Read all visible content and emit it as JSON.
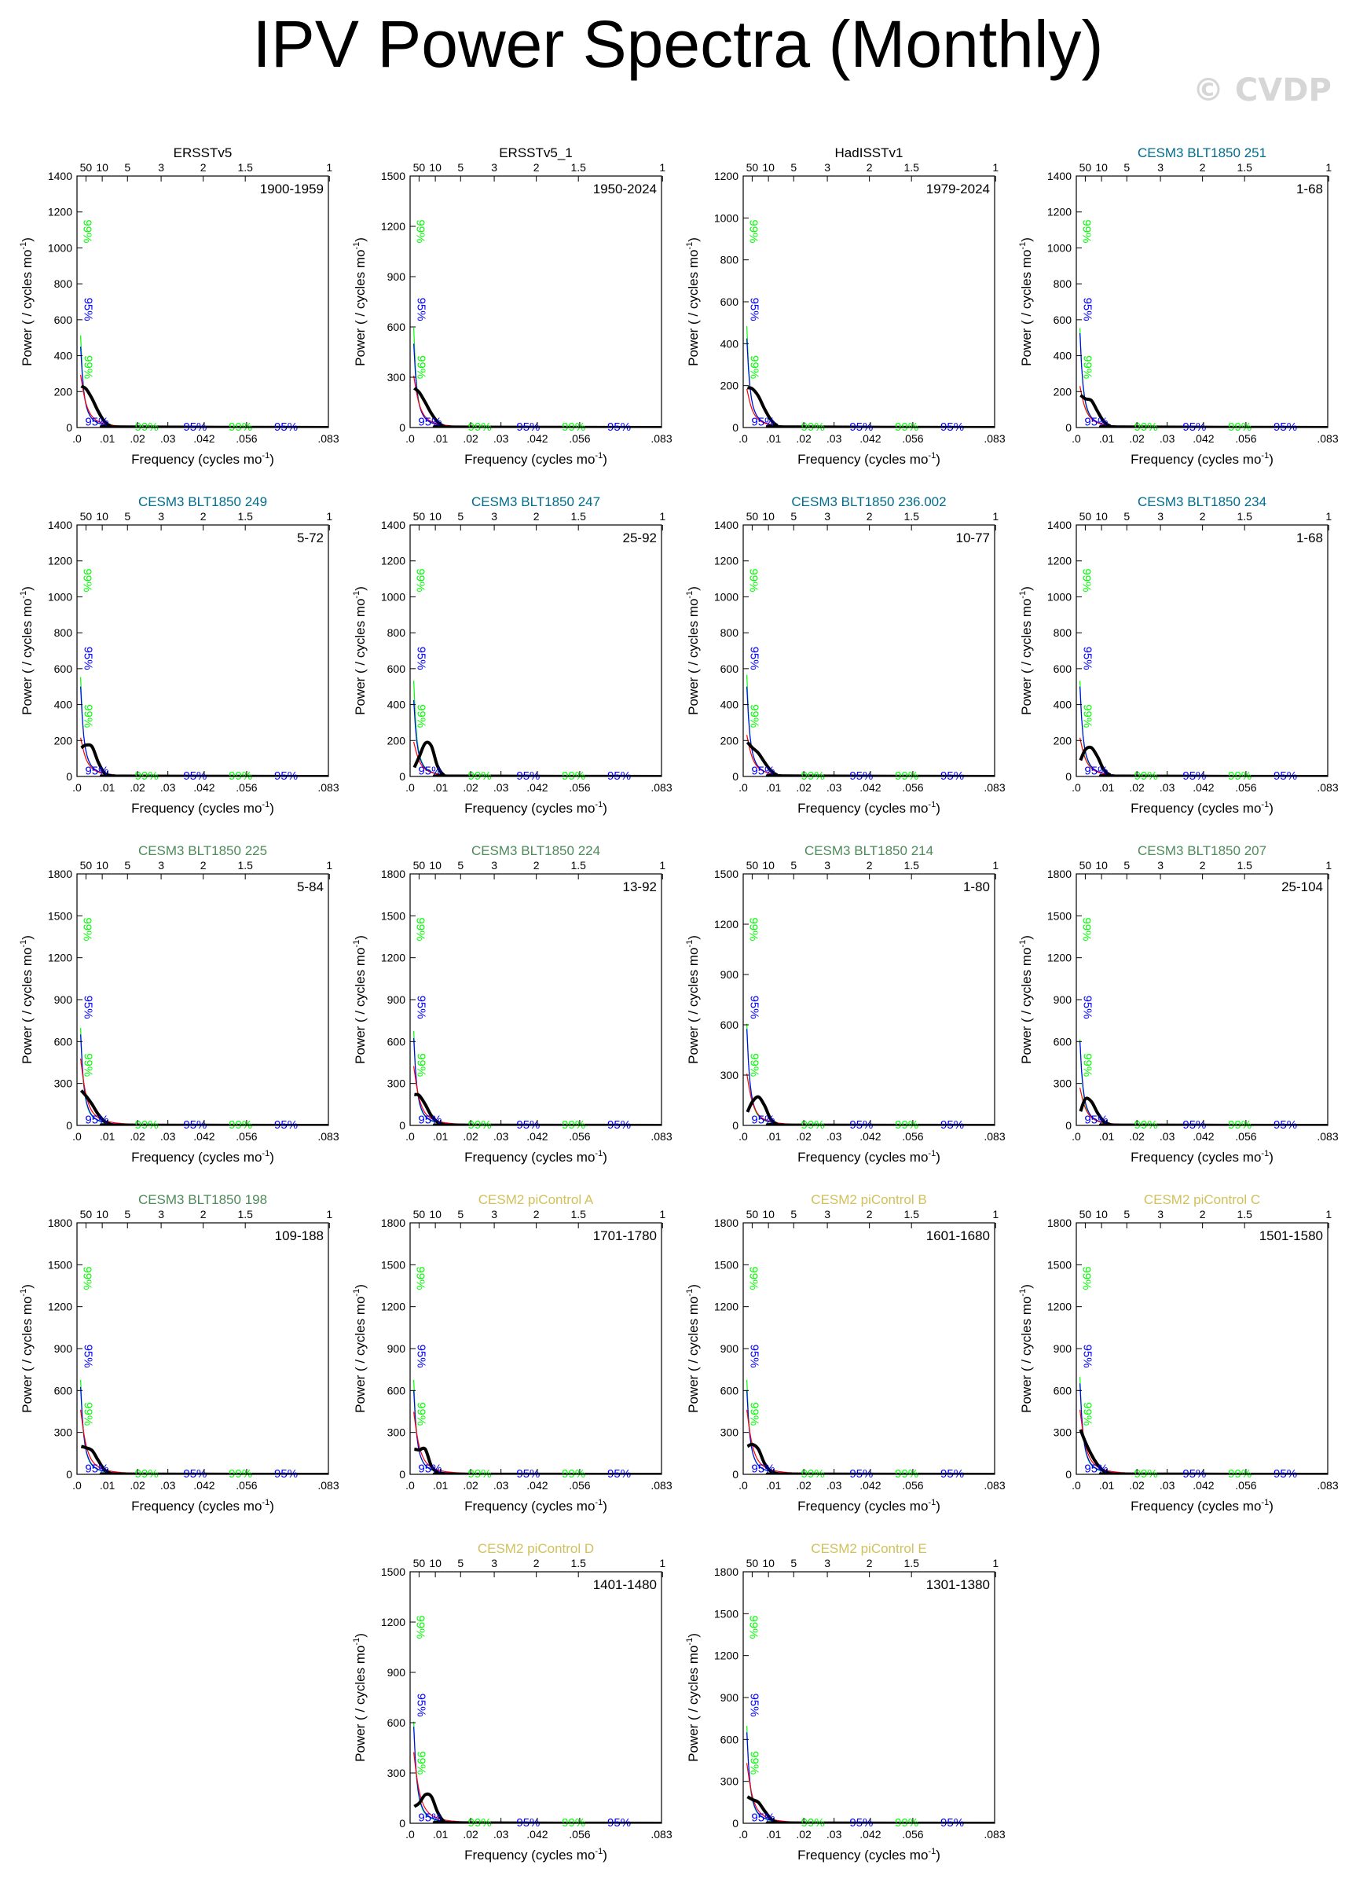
{
  "title": "IPV Power Spectra (Monthly)",
  "watermark": "© CVDP",
  "colors": {
    "spectrum": "#000000",
    "red_noise": "#ff0000",
    "sig95": "#0000ff",
    "sig99": "#00ff00",
    "title_obs": "#000000",
    "title_cesm3_blue": "#006c8e",
    "title_cesm3_green": "#4e8a5a",
    "title_cesm2": "#d2c15b"
  },
  "chart_data": [
    {
      "type": "line",
      "title": "ERSSTv5",
      "title_color": "#000000",
      "period": "1900-1959",
      "ylim": [
        0,
        1400
      ],
      "yticks": [
        0,
        200,
        400,
        600,
        800,
        1000,
        1200,
        1400
      ],
      "spec_x": [
        0.0014,
        0.003,
        0.005,
        0.007,
        0.009,
        0.011,
        0.014,
        0.083
      ],
      "spec_y": [
        230,
        215,
        160,
        90,
        35,
        10,
        3,
        0
      ],
      "red_peak": 380,
      "blue_peak": 900,
      "green_peak": 1250
    },
    {
      "type": "line",
      "title": "ERSSTv5_1",
      "title_color": "#000000",
      "period": "1950-2024",
      "ylim": [
        0,
        1500
      ],
      "yticks": [
        0,
        300,
        600,
        900,
        1200,
        1500
      ],
      "spec_x": [
        0.0014,
        0.003,
        0.005,
        0.007,
        0.009,
        0.011,
        0.014,
        0.083
      ],
      "spec_y": [
        235,
        210,
        150,
        85,
        35,
        10,
        3,
        0
      ],
      "red_peak": 400,
      "blue_peak": 1000,
      "green_peak": 1450
    },
    {
      "type": "line",
      "title": "HadISSTv1",
      "title_color": "#000000",
      "period": "1979-2024",
      "ylim": [
        0,
        1200
      ],
      "yticks": [
        0,
        200,
        400,
        600,
        800,
        1000,
        1200
      ],
      "spec_x": [
        0.0014,
        0.003,
        0.005,
        0.007,
        0.009,
        0.011,
        0.014,
        0.083
      ],
      "spec_y": [
        190,
        185,
        150,
        90,
        40,
        12,
        3,
        0
      ],
      "red_peak": 240,
      "blue_peak": 850,
      "green_peak": 1180
    },
    {
      "type": "line",
      "title": "CESM3 BLT1850 251",
      "title_color": "#006c8e",
      "period": "1-68",
      "ylim": [
        0,
        1400
      ],
      "yticks": [
        0,
        200,
        400,
        600,
        800,
        1000,
        1200,
        1400
      ],
      "spec_x": [
        0.0014,
        0.003,
        0.005,
        0.007,
        0.009,
        0.011,
        0.014,
        0.083
      ],
      "spec_y": [
        180,
        160,
        150,
        90,
        35,
        10,
        3,
        0
      ],
      "red_peak": 300,
      "blue_peak": 1050,
      "green_peak": 1350
    },
    {
      "type": "line",
      "title": "CESM3 BLT1850 249",
      "title_color": "#006c8e",
      "period": "5-72",
      "ylim": [
        0,
        1400
      ],
      "yticks": [
        0,
        200,
        400,
        600,
        800,
        1000,
        1200,
        1400
      ],
      "spec_x": [
        0.0014,
        0.003,
        0.005,
        0.007,
        0.009,
        0.011,
        0.014,
        0.083
      ],
      "spec_y": [
        160,
        175,
        165,
        80,
        20,
        5,
        2,
        0
      ],
      "red_peak": 280,
      "blue_peak": 1000,
      "green_peak": 1350
    },
    {
      "type": "line",
      "title": "CESM3 BLT1850 247",
      "title_color": "#006c8e",
      "period": "25-92",
      "ylim": [
        0,
        1400
      ],
      "yticks": [
        0,
        200,
        400,
        600,
        800,
        1000,
        1200,
        1400
      ],
      "spec_x": [
        0.0014,
        0.003,
        0.005,
        0.007,
        0.009,
        0.011,
        0.014,
        0.083
      ],
      "spec_y": [
        50,
        110,
        185,
        170,
        60,
        10,
        2,
        0
      ],
      "red_peak": 250,
      "blue_peak": 850,
      "green_peak": 1300
    },
    {
      "type": "line",
      "title": "CESM3 BLT1850 236.002",
      "title_color": "#006c8e",
      "period": "10-77",
      "ylim": [
        0,
        1400
      ],
      "yticks": [
        0,
        200,
        400,
        600,
        800,
        1000,
        1200,
        1400
      ],
      "spec_x": [
        0.0014,
        0.003,
        0.005,
        0.007,
        0.009,
        0.011,
        0.014,
        0.083
      ],
      "spec_y": [
        190,
        160,
        130,
        80,
        35,
        10,
        3,
        0
      ],
      "red_peak": 300,
      "blue_peak": 1000,
      "green_peak": 1380
    },
    {
      "type": "line",
      "title": "CESM3 BLT1850 234",
      "title_color": "#006c8e",
      "period": "1-68",
      "ylim": [
        0,
        1400
      ],
      "yticks": [
        0,
        200,
        400,
        600,
        800,
        1000,
        1200,
        1400
      ],
      "spec_x": [
        0.0014,
        0.003,
        0.005,
        0.007,
        0.009,
        0.011,
        0.014,
        0.083
      ],
      "spec_y": [
        90,
        150,
        160,
        110,
        40,
        10,
        2,
        0
      ],
      "red_peak": 280,
      "blue_peak": 1000,
      "green_peak": 1300
    },
    {
      "type": "line",
      "title": "CESM3 BLT1850 225",
      "title_color": "#4e8a5a",
      "period": "5-84",
      "ylim": [
        0,
        1800
      ],
      "yticks": [
        0,
        300,
        600,
        900,
        1200,
        1500,
        1800
      ],
      "spec_x": [
        0.0014,
        0.003,
        0.005,
        0.007,
        0.009,
        0.011,
        0.014,
        0.083
      ],
      "spec_y": [
        250,
        210,
        150,
        80,
        30,
        8,
        2,
        0
      ],
      "red_peak": 620,
      "blue_peak": 1300,
      "green_peak": 1700
    },
    {
      "type": "line",
      "title": "CESM3 BLT1850 224",
      "title_color": "#4e8a5a",
      "period": "13-92",
      "ylim": [
        0,
        1800
      ],
      "yticks": [
        0,
        300,
        600,
        900,
        1200,
        1500,
        1800
      ],
      "spec_x": [
        0.0014,
        0.003,
        0.005,
        0.007,
        0.009,
        0.011,
        0.014,
        0.083
      ],
      "spec_y": [
        220,
        215,
        150,
        70,
        25,
        6,
        2,
        0
      ],
      "red_peak": 550,
      "blue_peak": 1250,
      "green_peak": 1650
    },
    {
      "type": "line",
      "title": "CESM3 BLT1850 214",
      "title_color": "#4e8a5a",
      "period": "1-80",
      "ylim": [
        0,
        1500
      ],
      "yticks": [
        0,
        300,
        600,
        900,
        1200,
        1500
      ],
      "spec_x": [
        0.0014,
        0.003,
        0.005,
        0.007,
        0.009,
        0.011,
        0.014,
        0.083
      ],
      "spec_y": [
        80,
        140,
        170,
        120,
        40,
        10,
        2,
        0
      ],
      "red_peak": 400,
      "blue_peak": 1150,
      "green_peak": 1480
    },
    {
      "type": "line",
      "title": "CESM3 BLT1850 207",
      "title_color": "#4e8a5a",
      "period": "25-104",
      "ylim": [
        0,
        1800
      ],
      "yticks": [
        0,
        300,
        600,
        900,
        1200,
        1500,
        1800
      ],
      "spec_x": [
        0.0014,
        0.003,
        0.005,
        0.007,
        0.009,
        0.011,
        0.014,
        0.083
      ],
      "spec_y": [
        100,
        190,
        170,
        90,
        30,
        8,
        2,
        0
      ],
      "red_peak": 350,
      "blue_peak": 1200,
      "green_peak": 1500
    },
    {
      "type": "line",
      "title": "CESM3 BLT1850 198",
      "title_color": "#4e8a5a",
      "period": "109-188",
      "ylim": [
        0,
        1800
      ],
      "yticks": [
        0,
        300,
        600,
        900,
        1200,
        1500,
        1800
      ],
      "spec_x": [
        0.0014,
        0.003,
        0.005,
        0.007,
        0.009,
        0.011,
        0.014,
        0.083
      ],
      "spec_y": [
        200,
        190,
        170,
        100,
        35,
        8,
        2,
        0
      ],
      "red_peak": 600,
      "blue_peak": 1250,
      "green_peak": 1650
    },
    {
      "type": "line",
      "title": "CESM2 piControl A",
      "title_color": "#d2c15b",
      "period": "1701-1780",
      "ylim": [
        0,
        1800
      ],
      "yticks": [
        0,
        300,
        600,
        900,
        1200,
        1500,
        1800
      ],
      "spec_x": [
        0.0014,
        0.003,
        0.005,
        0.007,
        0.009,
        0.011,
        0.014,
        0.083
      ],
      "spec_y": [
        180,
        175,
        180,
        60,
        15,
        4,
        1,
        0
      ],
      "red_peak": 580,
      "blue_peak": 1200,
      "green_peak": 1650
    },
    {
      "type": "line",
      "title": "CESM2 piControl B",
      "title_color": "#d2c15b",
      "period": "1601-1680",
      "ylim": [
        0,
        1800
      ],
      "yticks": [
        0,
        300,
        600,
        900,
        1200,
        1500,
        1800
      ],
      "spec_x": [
        0.0014,
        0.003,
        0.005,
        0.007,
        0.009,
        0.011,
        0.014,
        0.083
      ],
      "spec_y": [
        200,
        215,
        180,
        80,
        25,
        6,
        2,
        0
      ],
      "red_peak": 600,
      "blue_peak": 1200,
      "green_peak": 1650
    },
    {
      "type": "line",
      "title": "CESM2 piControl C",
      "title_color": "#d2c15b",
      "period": "1501-1580",
      "ylim": [
        0,
        1800
      ],
      "yticks": [
        0,
        300,
        600,
        900,
        1200,
        1500,
        1800
      ],
      "spec_x": [
        0.0014,
        0.003,
        0.005,
        0.007,
        0.009,
        0.011,
        0.014,
        0.083
      ],
      "spec_y": [
        320,
        230,
        140,
        70,
        25,
        8,
        2,
        0
      ],
      "red_peak": 600,
      "blue_peak": 1300,
      "green_peak": 1700
    },
    {
      "type": "line",
      "title": "CESM2 piControl D",
      "title_color": "#d2c15b",
      "period": "1401-1480",
      "ylim": [
        0,
        1500
      ],
      "yticks": [
        0,
        300,
        600,
        900,
        1200,
        1500
      ],
      "spec_x": [
        0.0014,
        0.003,
        0.005,
        0.007,
        0.009,
        0.011,
        0.014,
        0.083
      ],
      "spec_y": [
        100,
        120,
        170,
        160,
        70,
        15,
        3,
        0
      ],
      "red_peak": 550,
      "blue_peak": 1150,
      "green_peak": 1480
    },
    {
      "type": "line",
      "title": "CESM2 piControl E",
      "title_color": "#d2c15b",
      "period": "1301-1380",
      "ylim": [
        0,
        1800
      ],
      "yticks": [
        0,
        300,
        600,
        900,
        1200,
        1500,
        1800
      ],
      "spec_x": [
        0.0014,
        0.003,
        0.005,
        0.007,
        0.009,
        0.011,
        0.014,
        0.083
      ],
      "spec_y": [
        190,
        170,
        150,
        90,
        35,
        8,
        2,
        0
      ],
      "red_peak": 560,
      "blue_peak": 1300,
      "green_peak": 1700
    }
  ],
  "axes": {
    "xlabel": "Frequency (cycles mo",
    "xlabel_sup": "-1",
    "xlabel_end": ")",
    "ylabel": "Power ( / cycles mo",
    "ylabel_sup": "-1",
    "ylabel_end": ")",
    "xlim": [
      0,
      0.083
    ],
    "xticks": [
      0,
      0.01,
      0.02,
      0.03,
      0.042,
      0.056,
      0.083
    ],
    "xtick_labels": [
      ".0",
      ".01",
      ".02",
      ".03",
      ".042",
      ".056",
      ".083"
    ],
    "top_ticks": [
      50,
      10,
      5,
      3,
      2,
      1.5,
      1
    ],
    "top_tick_labels": [
      "50",
      "10",
      "5",
      "3",
      "2",
      "1.5",
      "1"
    ],
    "sig95_label": "95%",
    "sig99_label": "99%"
  }
}
